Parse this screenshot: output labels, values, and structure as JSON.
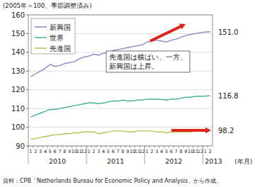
{
  "chart_data": {
    "type": "line",
    "y_label": "(2005年＝100、季節調整済み)",
    "x_label": "(年月)",
    "source": "資料：CPB「Netherlands Bureau for Economic Policy and Analysis」から作成。",
    "annotations": [
      "先進国は横ばい、一方、",
      "新興国は上昇。"
    ],
    "categories": [
      "1",
      "2",
      "3",
      "4",
      "5",
      "6",
      "7",
      "8",
      "9",
      "10",
      "11",
      "12",
      "1",
      "2",
      "3",
      "4",
      "5",
      "6",
      "7",
      "8",
      "9",
      "10",
      "11",
      "12",
      "1",
      "2",
      "3",
      "4",
      "5",
      "6",
      "7",
      "8",
      "9",
      "10",
      "11",
      "12",
      "1",
      "2"
    ],
    "groups": [
      {
        "label": "2010",
        "size": 12
      },
      {
        "label": "2011",
        "size": 12
      },
      {
        "label": "2012",
        "size": 12
      },
      {
        "label": "2013",
        "size": 2
      }
    ],
    "series": [
      {
        "name": "新興国",
        "color": "#8b85c4",
        "values": [
          127,
          128.5,
          130,
          131.5,
          133.5,
          132.5,
          133,
          134,
          134.5,
          135,
          136.5,
          137.5,
          138,
          139,
          138.5,
          139.5,
          140,
          141,
          141.5,
          142,
          142.5,
          143,
          143.5,
          144,
          145.5,
          146,
          146.5,
          146,
          145.5,
          146.5,
          147,
          148,
          149,
          149.5,
          150,
          150.5,
          150.8,
          151.0
        ],
        "value_labels": [
          null,
          null,
          null,
          null,
          null,
          null,
          null,
          null,
          null,
          null,
          null,
          null,
          null,
          null,
          null,
          null,
          null,
          null,
          null,
          null,
          null,
          null,
          null,
          null,
          null,
          null,
          null,
          null,
          null,
          null,
          null,
          null,
          null,
          null,
          null,
          null,
          null,
          "151.0"
        ]
      },
      {
        "name": "世界",
        "color": "#45b197",
        "values": [
          105.5,
          106.5,
          107.5,
          108.5,
          109.5,
          109.5,
          110,
          110.5,
          111,
          111.5,
          112,
          112.5,
          113,
          113,
          112.5,
          113,
          113.5,
          114,
          114,
          114.5,
          114,
          114,
          114.5,
          114.5,
          115,
          115,
          115,
          114.8,
          114.5,
          115,
          115,
          115.5,
          116,
          116,
          116.5,
          116.5,
          116.6,
          116.8
        ],
        "value_labels": [
          null,
          null,
          null,
          null,
          null,
          null,
          null,
          null,
          null,
          null,
          null,
          null,
          null,
          null,
          null,
          null,
          null,
          null,
          null,
          null,
          null,
          null,
          null,
          null,
          null,
          null,
          null,
          null,
          null,
          null,
          null,
          null,
          null,
          null,
          null,
          null,
          null,
          "116.8"
        ]
      },
      {
        "name": "先進国",
        "color": "#b3c24c",
        "values": [
          93.5,
          94,
          94.5,
          95,
          95.5,
          96,
          96,
          96.5,
          96.5,
          97,
          97,
          97.5,
          97.5,
          97.5,
          96.5,
          97,
          97.5,
          98,
          98,
          98,
          97.5,
          97.5,
          98,
          98,
          98,
          98,
          97.5,
          97.5,
          97,
          97.5,
          97.5,
          97.5,
          97.5,
          97.5,
          98,
          98,
          98,
          98.2
        ],
        "value_labels": [
          null,
          null,
          null,
          null,
          null,
          null,
          null,
          null,
          null,
          null,
          null,
          null,
          null,
          null,
          null,
          null,
          null,
          null,
          null,
          null,
          null,
          null,
          null,
          null,
          null,
          null,
          null,
          null,
          null,
          null,
          null,
          null,
          null,
          null,
          null,
          null,
          null,
          "98.2"
        ]
      }
    ],
    "ylim": [
      90,
      160
    ],
    "yticks": [
      90,
      100,
      110,
      120,
      130,
      140,
      150,
      160
    ],
    "grid": true,
    "legend": "upper left"
  }
}
